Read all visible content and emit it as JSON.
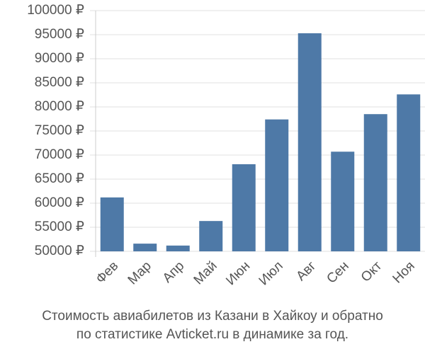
{
  "chart_data": {
    "type": "bar",
    "title": [
      "Стоимость авиабилетов из Казани в Хайкоу и обратно",
      "по статистике Avticket.ru в динамике за год."
    ],
    "categories": [
      "Фев",
      "Мар",
      "Апр",
      "Май",
      "Июн",
      "Июл",
      "Авг",
      "Сен",
      "Окт",
      "Ноя"
    ],
    "values": [
      61200,
      51600,
      51200,
      56300,
      68100,
      77400,
      95300,
      70700,
      78500,
      82600
    ],
    "color": "#4e79a7",
    "ylim": [
      50000,
      100000
    ],
    "yticks": [
      {
        "value": 50000,
        "label": "50000 ₽"
      },
      {
        "value": 55000,
        "label": "55000 ₽"
      },
      {
        "value": 60000,
        "label": "60000 ₽"
      },
      {
        "value": 65000,
        "label": "65000 ₽"
      },
      {
        "value": 70000,
        "label": "70000 ₽"
      },
      {
        "value": 75000,
        "label": "75000 ₽"
      },
      {
        "value": 80000,
        "label": "80000 ₽"
      },
      {
        "value": 85000,
        "label": "85000 ₽"
      },
      {
        "value": 90000,
        "label": "90000 ₽"
      },
      {
        "value": 95000,
        "label": "95000 ₽"
      },
      {
        "value": 100000,
        "label": "100000 ₽"
      }
    ],
    "grid": true
  }
}
